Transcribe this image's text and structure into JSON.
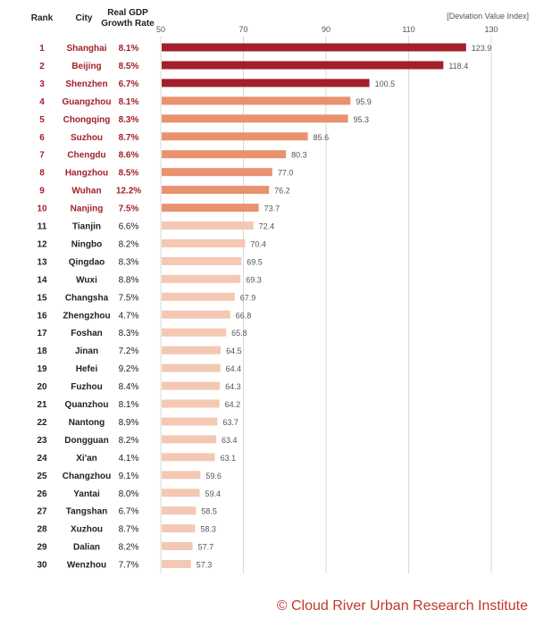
{
  "headers": {
    "rank": "Rank",
    "city": "City",
    "gdp_line1": "Real GDP",
    "gdp_line2": "Growth Rate",
    "index_label": "[Deviation Value Index]"
  },
  "footer": "© Cloud River Urban Research Institute",
  "colors": {
    "tier1": "#a3202a",
    "tier2": "#e8926f",
    "tier3": "#f4c8b3",
    "highlight_text": "#a3202a",
    "normal_text": "#222222",
    "grid": "#d9d9d9",
    "value_label": "#555555"
  },
  "chart_data": {
    "type": "bar",
    "orientation": "horizontal",
    "xlim": [
      50,
      130
    ],
    "xticks": [
      50,
      70,
      90,
      110,
      130
    ],
    "grid": true,
    "rows": [
      {
        "rank": "1",
        "city": "Shanghai",
        "gdp": "8.1%",
        "value": 123.9,
        "tier": 1
      },
      {
        "rank": "2",
        "city": "Beijing",
        "gdp": "8.5%",
        "value": 118.4,
        "tier": 1
      },
      {
        "rank": "3",
        "city": "Shenzhen",
        "gdp": "6.7%",
        "value": 100.5,
        "tier": 1
      },
      {
        "rank": "4",
        "city": "Guangzhou",
        "gdp": "8.1%",
        "value": 95.9,
        "tier": 2
      },
      {
        "rank": "5",
        "city": "Chongqing",
        "gdp": "8.3%",
        "value": 95.3,
        "tier": 2
      },
      {
        "rank": "6",
        "city": "Suzhou",
        "gdp": "8.7%",
        "value": 85.6,
        "tier": 2
      },
      {
        "rank": "7",
        "city": "Chengdu",
        "gdp": "8.6%",
        "value": 80.3,
        "tier": 2
      },
      {
        "rank": "8",
        "city": "Hangzhou",
        "gdp": "8.5%",
        "value": 77.0,
        "tier": 2
      },
      {
        "rank": "9",
        "city": "Wuhan",
        "gdp": "12.2%",
        "value": 76.2,
        "tier": 2
      },
      {
        "rank": "10",
        "city": "Nanjing",
        "gdp": "7.5%",
        "value": 73.7,
        "tier": 2
      },
      {
        "rank": "11",
        "city": "Tianjin",
        "gdp": "6.6%",
        "value": 72.4,
        "tier": 3
      },
      {
        "rank": "12",
        "city": "Ningbo",
        "gdp": "8.2%",
        "value": 70.4,
        "tier": 3
      },
      {
        "rank": "13",
        "city": "Qingdao",
        "gdp": "8.3%",
        "value": 69.5,
        "tier": 3
      },
      {
        "rank": "14",
        "city": "Wuxi",
        "gdp": "8.8%",
        "value": 69.3,
        "tier": 3
      },
      {
        "rank": "15",
        "city": "Changsha",
        "gdp": "7.5%",
        "value": 67.9,
        "tier": 3
      },
      {
        "rank": "16",
        "city": "Zhengzhou",
        "gdp": "4.7%",
        "value": 66.8,
        "tier": 3
      },
      {
        "rank": "17",
        "city": "Foshan",
        "gdp": "8.3%",
        "value": 65.8,
        "tier": 3
      },
      {
        "rank": "18",
        "city": "Jinan",
        "gdp": "7.2%",
        "value": 64.5,
        "tier": 3
      },
      {
        "rank": "19",
        "city": "Hefei",
        "gdp": "9.2%",
        "value": 64.4,
        "tier": 3
      },
      {
        "rank": "20",
        "city": "Fuzhou",
        "gdp": "8.4%",
        "value": 64.3,
        "tier": 3
      },
      {
        "rank": "21",
        "city": "Quanzhou",
        "gdp": "8.1%",
        "value": 64.2,
        "tier": 3
      },
      {
        "rank": "22",
        "city": "Nantong",
        "gdp": "8.9%",
        "value": 63.7,
        "tier": 3
      },
      {
        "rank": "23",
        "city": "Dongguan",
        "gdp": "8.2%",
        "value": 63.4,
        "tier": 3
      },
      {
        "rank": "24",
        "city": "Xi'an",
        "gdp": "4.1%",
        "value": 63.1,
        "tier": 3
      },
      {
        "rank": "25",
        "city": "Changzhou",
        "gdp": "9.1%",
        "value": 59.6,
        "tier": 3
      },
      {
        "rank": "26",
        "city": "Yantai",
        "gdp": "8.0%",
        "value": 59.4,
        "tier": 3
      },
      {
        "rank": "27",
        "city": "Tangshan",
        "gdp": "6.7%",
        "value": 58.5,
        "tier": 3
      },
      {
        "rank": "28",
        "city": "Xuzhou",
        "gdp": "8.7%",
        "value": 58.3,
        "tier": 3
      },
      {
        "rank": "29",
        "city": "Dalian",
        "gdp": "8.2%",
        "value": 57.7,
        "tier": 3
      },
      {
        "rank": "30",
        "city": "Wenzhou",
        "gdp": "7.7%",
        "value": 57.3,
        "tier": 3
      }
    ]
  }
}
